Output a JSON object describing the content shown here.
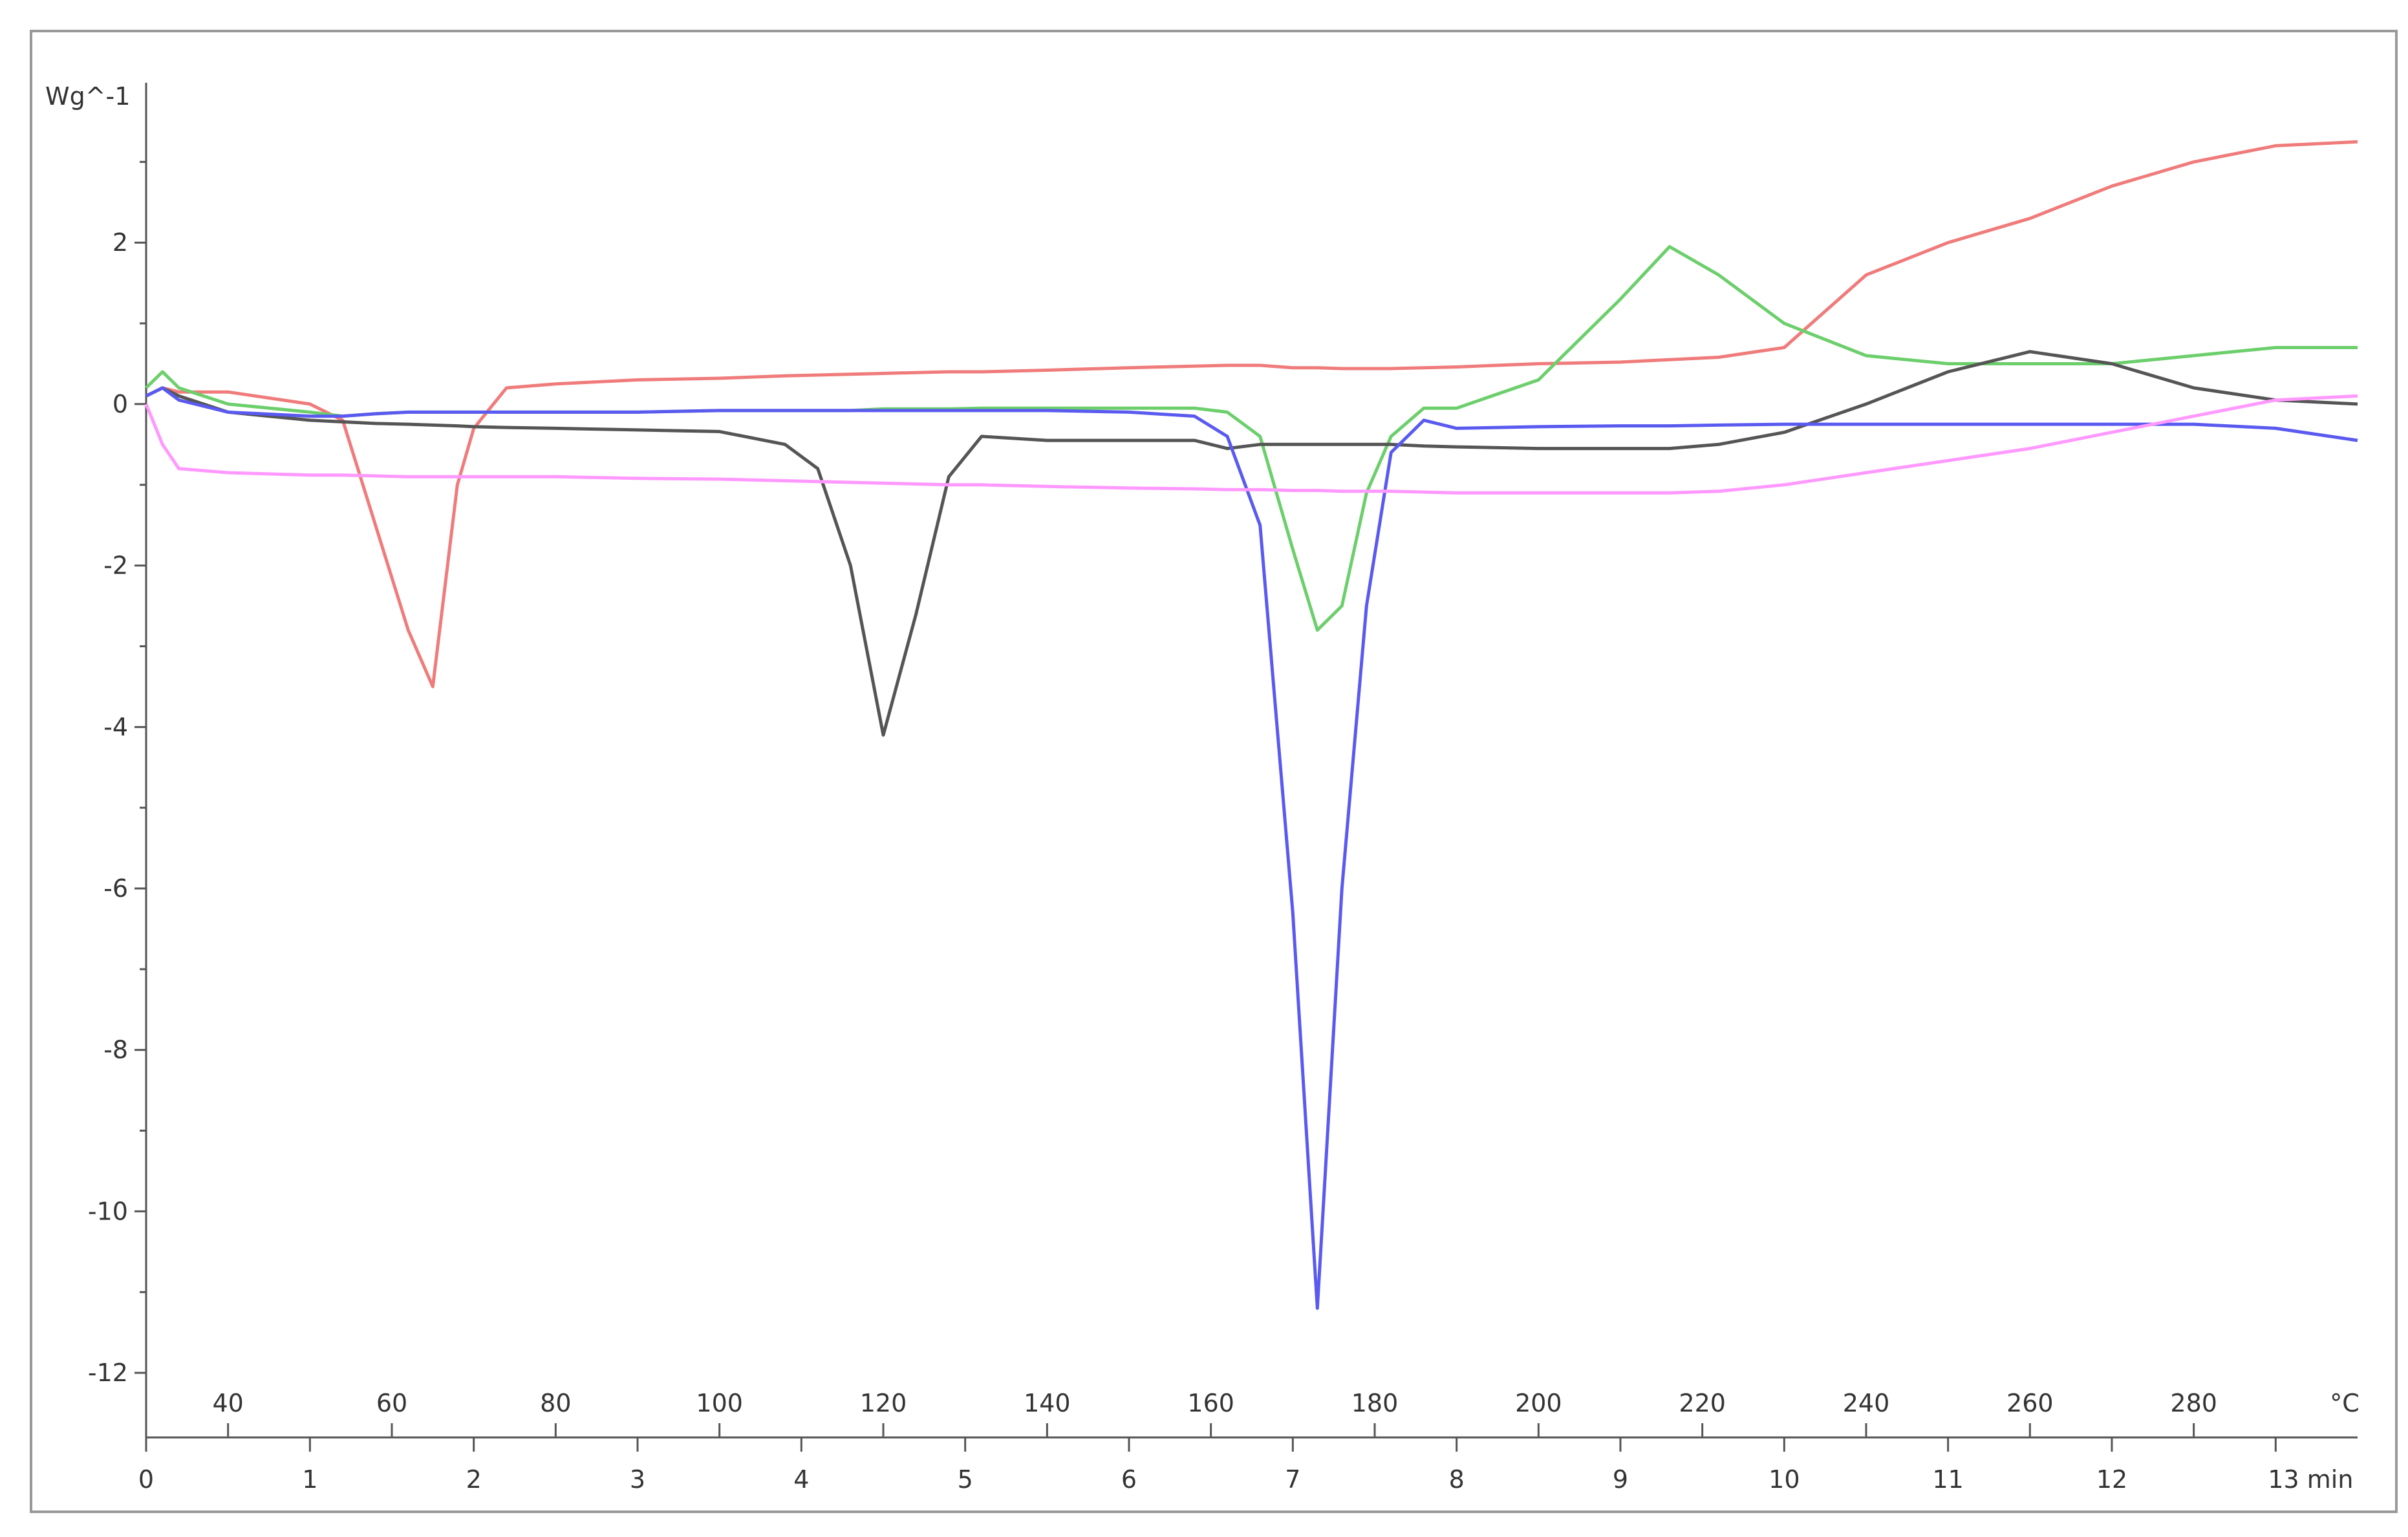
{
  "chart_data": {
    "type": "line",
    "ylabel": "Wg^-1",
    "x2label": "°C",
    "xlim": [
      0,
      13.5
    ],
    "ylim": [
      -12.8,
      3.9
    ],
    "x2lim": [
      30,
      300
    ],
    "yticks": [
      -12,
      -10,
      -8,
      -6,
      -4,
      -2,
      0,
      2
    ],
    "yminorticks": [
      -11,
      -9,
      -7,
      -5,
      -3,
      -1,
      1,
      3
    ],
    "xticks": [
      0,
      1,
      2,
      3,
      4,
      5,
      6,
      7,
      8,
      9,
      10,
      11,
      12,
      {
        "value": 13,
        "label": "13 min"
      }
    ],
    "x2ticks": [
      40,
      60,
      80,
      100,
      120,
      140,
      160,
      180,
      200,
      220,
      240,
      260,
      280
    ],
    "x": [
      0,
      0.1,
      0.2,
      0.5,
      1,
      1.2,
      1.4,
      1.6,
      1.75,
      1.9,
      2.0,
      2.2,
      2.5,
      3,
      3.5,
      3.9,
      4.1,
      4.3,
      4.5,
      4.7,
      4.9,
      5.1,
      5.5,
      6,
      6.4,
      6.6,
      6.8,
      7.0,
      7.15,
      7.3,
      7.45,
      7.6,
      7.8,
      8,
      8.5,
      9,
      9.3,
      9.6,
      10,
      10.5,
      11,
      11.5,
      12,
      12.5,
      13,
      13.5
    ],
    "series": [
      {
        "color": "#f07b7b",
        "values": [
          0.1,
          0.2,
          0.15,
          0.15,
          0,
          -0.2,
          -1.5,
          -2.8,
          -3.5,
          -1.0,
          -0.3,
          0.2,
          0.25,
          0.3,
          0.32,
          0.35,
          0.36,
          0.37,
          0.38,
          0.39,
          0.4,
          0.4,
          0.42,
          0.45,
          0.47,
          0.48,
          0.48,
          0.45,
          0.45,
          0.44,
          0.44,
          0.44,
          0.45,
          0.46,
          0.5,
          0.52,
          0.55,
          0.58,
          0.7,
          1.6,
          2.0,
          2.3,
          2.7,
          3.0,
          3.2,
          3.25
        ]
      },
      {
        "color": "#6ccf6c",
        "values": [
          0.2,
          0.4,
          0.2,
          0,
          -0.1,
          -0.15,
          -0.12,
          -0.1,
          -0.1,
          -0.1,
          -0.1,
          -0.1,
          -0.1,
          -0.1,
          -0.08,
          -0.08,
          -0.08,
          -0.08,
          -0.06,
          -0.06,
          -0.06,
          -0.05,
          -0.05,
          -0.05,
          -0.05,
          -0.1,
          -0.4,
          -1.8,
          -2.8,
          -2.5,
          -1.1,
          -0.4,
          -0.05,
          -0.05,
          0.3,
          1.3,
          1.95,
          1.6,
          1.0,
          0.6,
          0.5,
          0.5,
          0.5,
          0.6,
          0.7,
          0.7
        ]
      },
      {
        "color": "#555555",
        "values": [
          0.1,
          0.2,
          0.1,
          -0.1,
          -0.2,
          -0.22,
          -0.24,
          -0.25,
          -0.26,
          -0.27,
          -0.28,
          -0.29,
          -0.3,
          -0.32,
          -0.34,
          -0.5,
          -0.8,
          -2.0,
          -4.1,
          -2.6,
          -0.9,
          -0.4,
          -0.45,
          -0.45,
          -0.45,
          -0.55,
          -0.5,
          -0.5,
          -0.5,
          -0.5,
          -0.5,
          -0.5,
          -0.52,
          -0.53,
          -0.55,
          -0.55,
          -0.55,
          -0.5,
          -0.35,
          0,
          0.4,
          0.65,
          0.5,
          0.2,
          0.05,
          0
        ]
      },
      {
        "color": "#5a5af0",
        "values": [
          0.1,
          0.2,
          0.05,
          -0.1,
          -0.15,
          -0.15,
          -0.12,
          -0.1,
          -0.1,
          -0.1,
          -0.1,
          -0.1,
          -0.1,
          -0.1,
          -0.08,
          -0.08,
          -0.08,
          -0.08,
          -0.08,
          -0.08,
          -0.08,
          -0.08,
          -0.08,
          -0.1,
          -0.15,
          -0.4,
          -1.5,
          -6.3,
          -11.2,
          -6.0,
          -2.5,
          -0.6,
          -0.2,
          -0.3,
          -0.28,
          -0.27,
          -0.27,
          -0.26,
          -0.25,
          -0.25,
          -0.25,
          -0.25,
          -0.25,
          -0.25,
          -0.3,
          -0.45
        ]
      },
      {
        "color": "#ff99ff",
        "values": [
          0,
          -0.5,
          -0.8,
          -0.85,
          -0.88,
          -0.88,
          -0.89,
          -0.9,
          -0.9,
          -0.9,
          -0.9,
          -0.9,
          -0.9,
          -0.92,
          -0.93,
          -0.95,
          -0.96,
          -0.97,
          -0.98,
          -0.99,
          -1.0,
          -1.0,
          -1.02,
          -1.04,
          -1.05,
          -1.06,
          -1.06,
          -1.07,
          -1.07,
          -1.08,
          -1.08,
          -1.08,
          -1.09,
          -1.1,
          -1.1,
          -1.1,
          -1.1,
          -1.08,
          -1.0,
          -0.85,
          -0.7,
          -0.55,
          -0.35,
          -0.15,
          0.05,
          0.1
        ]
      }
    ]
  }
}
